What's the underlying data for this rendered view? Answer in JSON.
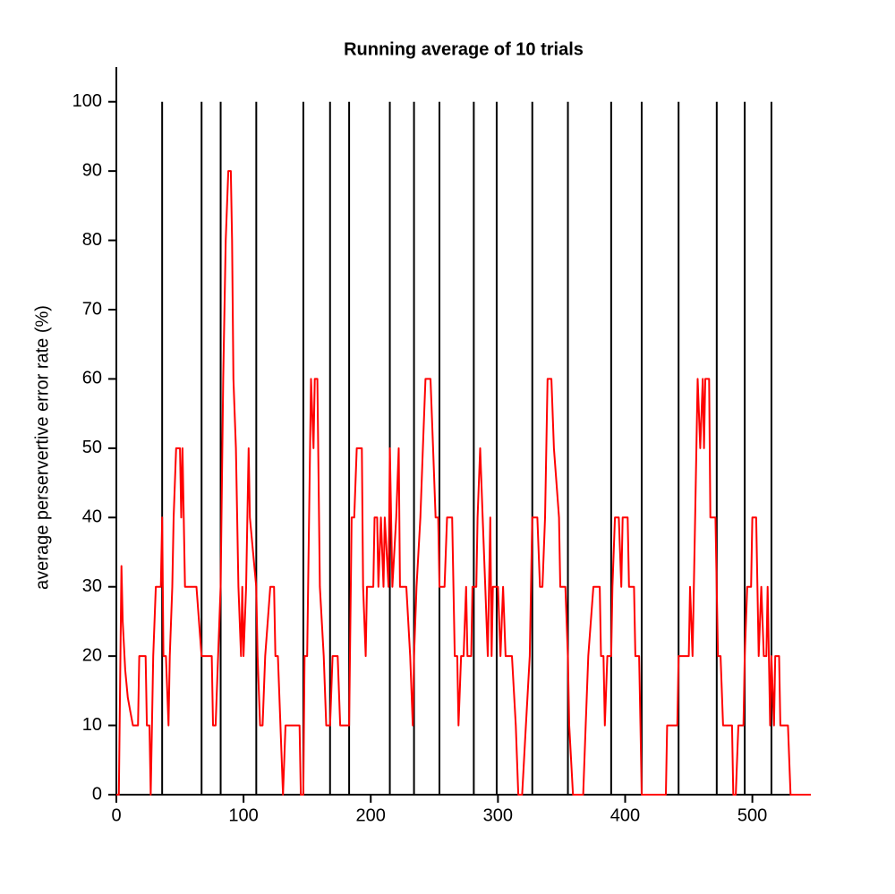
{
  "chart_data": {
    "type": "line",
    "title": "Running average of 10 trials",
    "y_label": "average perservertive error rate (%)",
    "xlim": [
      0,
      546
    ],
    "ylim": [
      0,
      105
    ],
    "xticks": [
      0,
      100,
      200,
      300,
      400,
      500
    ],
    "yticks": [
      0,
      10,
      20,
      30,
      40,
      50,
      60,
      70,
      80,
      90,
      100
    ],
    "vlines": [
      36,
      67,
      82,
      110,
      147,
      168,
      183,
      215,
      234,
      254,
      281,
      299,
      327,
      355,
      389,
      413,
      442,
      472,
      494,
      515
    ],
    "vline_color": "#000000",
    "series": [
      {
        "color": "#ff0000",
        "x": [
          0,
          2,
          4,
          5,
          7,
          9,
          11,
          13,
          17,
          18,
          23,
          24,
          26,
          27,
          28,
          29,
          31,
          35,
          36,
          37,
          39,
          41,
          42,
          44,
          45,
          47,
          50,
          51,
          52,
          53,
          54,
          57,
          63,
          67,
          75,
          76,
          78,
          80,
          82,
          84,
          86,
          88,
          90,
          91,
          92,
          94,
          96,
          98,
          99,
          100,
          102,
          104,
          105,
          110,
          111,
          113,
          115,
          117,
          121,
          124,
          125,
          127,
          131,
          133,
          144,
          145,
          147,
          148,
          150,
          153,
          155,
          156,
          158,
          160,
          163,
          165,
          168,
          170,
          174,
          176,
          183,
          185,
          187,
          189,
          193,
          194,
          196,
          197,
          202,
          203,
          205,
          206,
          208,
          210,
          211,
          214,
          215,
          217,
          220,
          222,
          223,
          228,
          231,
          233,
          234,
          236,
          239,
          241,
          243,
          247,
          249,
          251,
          253,
          254,
          258,
          260,
          264,
          266,
          268,
          269,
          271,
          273,
          275,
          276,
          279,
          280,
          283,
          284,
          286,
          288,
          290,
          292,
          294,
          295,
          296,
          300,
          302,
          304,
          306,
          311,
          314,
          316,
          319,
          322,
          325,
          327,
          331,
          333,
          335,
          337,
          339,
          342,
          344,
          348,
          349,
          353,
          355,
          356,
          359,
          367,
          369,
          371,
          375,
          380,
          381,
          383,
          384,
          386,
          389,
          390,
          392,
          395,
          397,
          398,
          402,
          403,
          407,
          408,
          411,
          412,
          413,
          432,
          433,
          441,
          442,
          450,
          451,
          453,
          455,
          457,
          459,
          461,
          462,
          463,
          466,
          467,
          471,
          472,
          473,
          475,
          477,
          484,
          485,
          487,
          489,
          493,
          494,
          496,
          499,
          500,
          503,
          505,
          507,
          509,
          511,
          512,
          514,
          515,
          517,
          518,
          521,
          522,
          528,
          530,
          546
        ],
        "values": [
          0,
          0,
          33,
          25,
          18,
          14,
          12,
          10,
          10,
          20,
          20,
          10,
          10,
          0,
          10,
          20,
          30,
          30,
          40,
          20,
          20,
          10,
          20,
          30,
          40,
          50,
          50,
          40,
          50,
          40,
          30,
          30,
          30,
          20,
          20,
          10,
          10,
          20,
          30,
          60,
          80,
          90,
          90,
          80,
          60,
          50,
          30,
          20,
          30,
          20,
          30,
          50,
          40,
          30,
          20,
          10,
          10,
          20,
          30,
          30,
          20,
          20,
          0,
          10,
          10,
          0,
          0,
          20,
          20,
          60,
          50,
          60,
          60,
          30,
          20,
          10,
          10,
          20,
          20,
          10,
          10,
          40,
          40,
          50,
          50,
          30,
          20,
          30,
          30,
          40,
          40,
          30,
          40,
          30,
          40,
          30,
          50,
          30,
          40,
          50,
          30,
          30,
          20,
          10,
          20,
          30,
          40,
          50,
          60,
          60,
          50,
          40,
          40,
          30,
          30,
          40,
          40,
          20,
          20,
          10,
          20,
          20,
          30,
          20,
          20,
          30,
          30,
          40,
          50,
          40,
          30,
          20,
          40,
          20,
          30,
          30,
          20,
          30,
          20,
          20,
          10,
          0,
          0,
          10,
          20,
          40,
          40,
          30,
          30,
          40,
          60,
          60,
          50,
          40,
          30,
          30,
          20,
          10,
          0,
          0,
          10,
          20,
          30,
          30,
          20,
          20,
          10,
          20,
          20,
          30,
          40,
          40,
          30,
          40,
          40,
          30,
          30,
          20,
          20,
          10,
          0,
          0,
          10,
          10,
          20,
          20,
          30,
          20,
          40,
          60,
          50,
          60,
          50,
          60,
          60,
          40,
          40,
          30,
          20,
          20,
          10,
          10,
          0,
          0,
          10,
          10,
          20,
          30,
          30,
          40,
          40,
          20,
          30,
          20,
          20,
          30,
          10,
          20,
          10,
          20,
          20,
          10,
          10,
          0,
          0
        ]
      }
    ]
  }
}
